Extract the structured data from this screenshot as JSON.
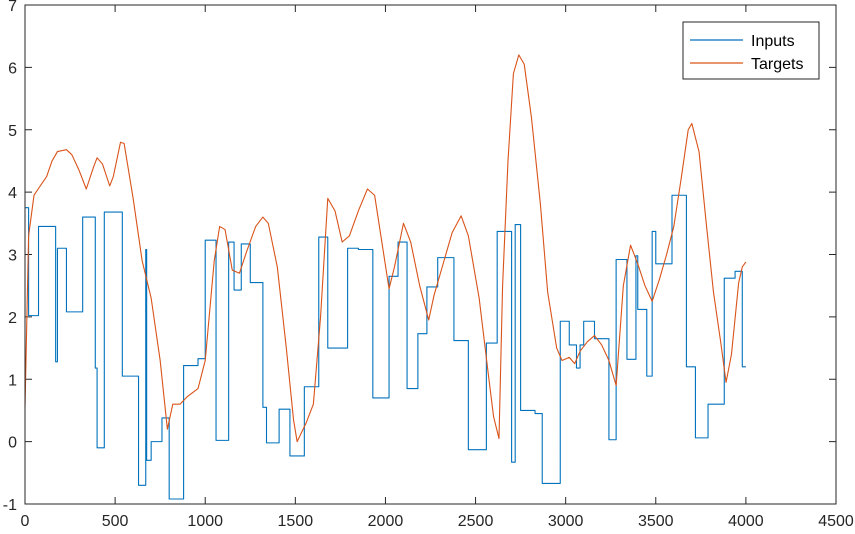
{
  "chart_data": {
    "type": "line",
    "title": "",
    "xlabel": "",
    "ylabel": "",
    "xlim": [
      0,
      4500
    ],
    "ylim": [
      -1,
      7
    ],
    "xticks": [
      0,
      500,
      1000,
      1500,
      2000,
      2500,
      3000,
      3500,
      4000,
      4500
    ],
    "yticks": [
      -1,
      0,
      1,
      2,
      3,
      4,
      5,
      6,
      7
    ],
    "grid": false,
    "legend_position": "top-right",
    "series": [
      {
        "name": "Inputs",
        "color": "#0072BD",
        "step": true,
        "points": [
          [
            0,
            3.75
          ],
          [
            20,
            2.02
          ],
          [
            75,
            3.45
          ],
          [
            170,
            1.28
          ],
          [
            180,
            3.1
          ],
          [
            230,
            2.08
          ],
          [
            320,
            3.6
          ],
          [
            390,
            1.18
          ],
          [
            400,
            -0.1
          ],
          [
            440,
            3.68
          ],
          [
            540,
            1.05
          ],
          [
            630,
            -0.7
          ],
          [
            670,
            3.08
          ],
          [
            675,
            -0.3
          ],
          [
            700,
            0.0
          ],
          [
            760,
            0.38
          ],
          [
            800,
            -0.92
          ],
          [
            880,
            1.22
          ],
          [
            960,
            1.33
          ],
          [
            1000,
            3.23
          ],
          [
            1060,
            0.02
          ],
          [
            1130,
            3.2
          ],
          [
            1160,
            2.43
          ],
          [
            1200,
            3.17
          ],
          [
            1250,
            2.55
          ],
          [
            1320,
            0.55
          ],
          [
            1340,
            -0.02
          ],
          [
            1410,
            0.52
          ],
          [
            1470,
            -0.23
          ],
          [
            1550,
            0.88
          ],
          [
            1630,
            3.28
          ],
          [
            1680,
            1.5
          ],
          [
            1790,
            3.1
          ],
          [
            1850,
            3.08
          ],
          [
            1930,
            0.7
          ],
          [
            2020,
            2.65
          ],
          [
            2070,
            3.2
          ],
          [
            2120,
            0.85
          ],
          [
            2180,
            1.73
          ],
          [
            2230,
            2.48
          ],
          [
            2290,
            2.95
          ],
          [
            2380,
            1.62
          ],
          [
            2460,
            -0.13
          ],
          [
            2560,
            1.58
          ],
          [
            2620,
            3.37
          ],
          [
            2700,
            -0.33
          ],
          [
            2720,
            3.48
          ],
          [
            2750,
            0.5
          ],
          [
            2830,
            0.45
          ],
          [
            2870,
            -0.67
          ],
          [
            2970,
            1.93
          ],
          [
            3020,
            1.55
          ],
          [
            3060,
            1.18
          ],
          [
            3080,
            1.55
          ],
          [
            3100,
            1.93
          ],
          [
            3160,
            1.65
          ],
          [
            3220,
            1.65
          ],
          [
            3240,
            0.03
          ],
          [
            3280,
            2.92
          ],
          [
            3340,
            1.32
          ],
          [
            3390,
            2.98
          ],
          [
            3400,
            2.12
          ],
          [
            3450,
            1.05
          ],
          [
            3480,
            3.37
          ],
          [
            3500,
            2.85
          ],
          [
            3590,
            3.95
          ],
          [
            3670,
            1.2
          ],
          [
            3720,
            0.06
          ],
          [
            3790,
            0.6
          ],
          [
            3880,
            2.62
          ],
          [
            3940,
            2.73
          ],
          [
            3980,
            1.2
          ],
          [
            4000,
            1.2
          ]
        ]
      },
      {
        "name": "Targets",
        "color": "#D95319",
        "step": false,
        "points": [
          [
            0,
            0.55
          ],
          [
            20,
            3.3
          ],
          [
            50,
            3.95
          ],
          [
            80,
            4.08
          ],
          [
            120,
            4.25
          ],
          [
            150,
            4.5
          ],
          [
            180,
            4.65
          ],
          [
            230,
            4.68
          ],
          [
            260,
            4.6
          ],
          [
            300,
            4.35
          ],
          [
            340,
            4.05
          ],
          [
            380,
            4.4
          ],
          [
            400,
            4.55
          ],
          [
            430,
            4.45
          ],
          [
            470,
            4.1
          ],
          [
            490,
            4.25
          ],
          [
            530,
            4.8
          ],
          [
            550,
            4.78
          ],
          [
            600,
            3.9
          ],
          [
            650,
            2.9
          ],
          [
            700,
            2.3
          ],
          [
            750,
            1.3
          ],
          [
            790,
            0.2
          ],
          [
            820,
            0.6
          ],
          [
            860,
            0.6
          ],
          [
            900,
            0.72
          ],
          [
            960,
            0.85
          ],
          [
            1000,
            1.3
          ],
          [
            1050,
            2.9
          ],
          [
            1080,
            3.45
          ],
          [
            1110,
            3.4
          ],
          [
            1150,
            2.75
          ],
          [
            1190,
            2.7
          ],
          [
            1230,
            3.05
          ],
          [
            1280,
            3.45
          ],
          [
            1320,
            3.6
          ],
          [
            1350,
            3.5
          ],
          [
            1400,
            2.8
          ],
          [
            1450,
            1.5
          ],
          [
            1490,
            0.35
          ],
          [
            1510,
            0.0
          ],
          [
            1560,
            0.3
          ],
          [
            1600,
            0.6
          ],
          [
            1640,
            2.0
          ],
          [
            1680,
            3.9
          ],
          [
            1720,
            3.7
          ],
          [
            1760,
            3.2
          ],
          [
            1800,
            3.3
          ],
          [
            1850,
            3.7
          ],
          [
            1900,
            4.05
          ],
          [
            1940,
            3.95
          ],
          [
            1980,
            3.2
          ],
          [
            2020,
            2.45
          ],
          [
            2050,
            2.8
          ],
          [
            2100,
            3.5
          ],
          [
            2140,
            3.2
          ],
          [
            2190,
            2.5
          ],
          [
            2240,
            1.95
          ],
          [
            2270,
            2.35
          ],
          [
            2320,
            2.85
          ],
          [
            2370,
            3.35
          ],
          [
            2420,
            3.62
          ],
          [
            2460,
            3.3
          ],
          [
            2520,
            2.3
          ],
          [
            2570,
            1.1
          ],
          [
            2600,
            0.4
          ],
          [
            2630,
            0.05
          ],
          [
            2650,
            2.5
          ],
          [
            2680,
            4.5
          ],
          [
            2710,
            5.9
          ],
          [
            2740,
            6.2
          ],
          [
            2770,
            6.05
          ],
          [
            2810,
            5.2
          ],
          [
            2860,
            3.8
          ],
          [
            2900,
            2.4
          ],
          [
            2950,
            1.5
          ],
          [
            2980,
            1.3
          ],
          [
            3020,
            1.35
          ],
          [
            3050,
            1.25
          ],
          [
            3080,
            1.45
          ],
          [
            3120,
            1.6
          ],
          [
            3160,
            1.7
          ],
          [
            3200,
            1.55
          ],
          [
            3240,
            1.3
          ],
          [
            3280,
            0.9
          ],
          [
            3320,
            2.5
          ],
          [
            3360,
            3.15
          ],
          [
            3400,
            2.85
          ],
          [
            3440,
            2.5
          ],
          [
            3480,
            2.25
          ],
          [
            3520,
            2.6
          ],
          [
            3560,
            3.0
          ],
          [
            3600,
            3.45
          ],
          [
            3640,
            4.2
          ],
          [
            3680,
            5.0
          ],
          [
            3700,
            5.1
          ],
          [
            3740,
            4.65
          ],
          [
            3780,
            3.5
          ],
          [
            3820,
            2.4
          ],
          [
            3860,
            1.6
          ],
          [
            3890,
            0.95
          ],
          [
            3920,
            1.4
          ],
          [
            3960,
            2.55
          ],
          [
            3980,
            2.8
          ],
          [
            4000,
            2.88
          ]
        ]
      }
    ]
  }
}
